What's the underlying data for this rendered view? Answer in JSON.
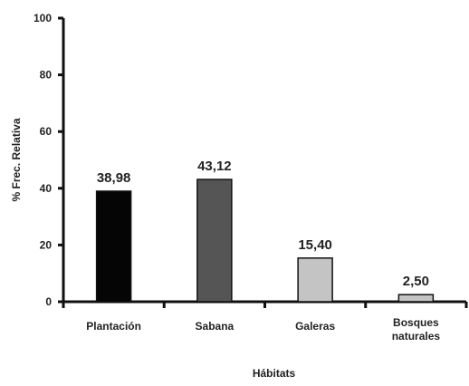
{
  "chart_data": {
    "type": "bar",
    "categories": [
      "Plantación",
      "Sabana",
      "Galeras",
      "Bosques naturales"
    ],
    "values": [
      38.98,
      43.12,
      15.4,
      2.5
    ],
    "value_labels": [
      "38,98",
      "43,12",
      "15,40",
      "2,50"
    ],
    "ylim": [
      0,
      100
    ],
    "yticks": [
      0,
      20,
      40,
      60,
      80,
      100
    ],
    "xlabel": "Hábitats",
    "ylabel": "% Frec. Relativa",
    "grid": false,
    "bar_colors": [
      "#050505",
      "#555555",
      "#c4c4c4",
      "#c4c4c4"
    ]
  }
}
